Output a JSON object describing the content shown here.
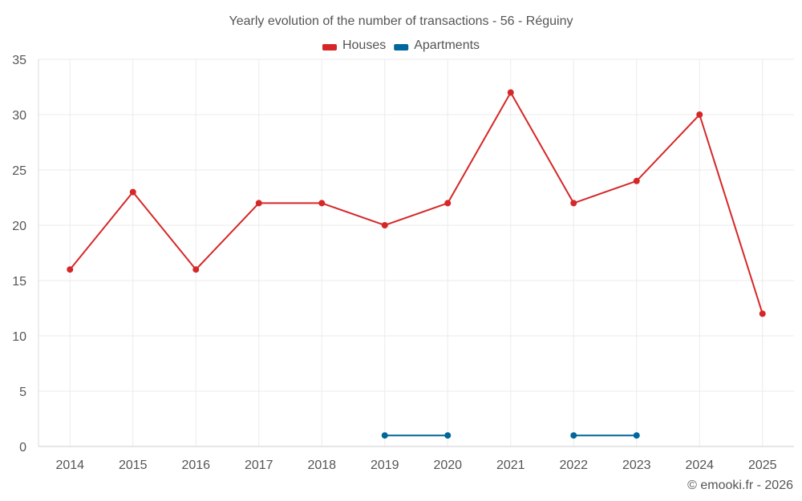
{
  "chart_data": {
    "type": "line",
    "title": "Yearly evolution of the number of transactions - 56 - Réguiny",
    "credit": "© emooki.fr - 2026",
    "xlabel": "",
    "ylabel": "",
    "x": [
      "2014",
      "2015",
      "2016",
      "2017",
      "2018",
      "2019",
      "2020",
      "2021",
      "2022",
      "2023",
      "2024",
      "2025"
    ],
    "ylim": [
      0,
      35
    ],
    "yticks": [
      0,
      5,
      10,
      15,
      20,
      25,
      30,
      35
    ],
    "legend_position": "top-center",
    "grid": true,
    "series": [
      {
        "name": "Houses",
        "color": "#d62728",
        "values": [
          16,
          23,
          16,
          22,
          22,
          20,
          22,
          32,
          22,
          24,
          30,
          12
        ]
      },
      {
        "name": "Apartments",
        "color": "#00669b",
        "values": [
          null,
          null,
          null,
          null,
          null,
          1,
          1,
          null,
          1,
          1,
          null,
          null
        ]
      }
    ]
  }
}
